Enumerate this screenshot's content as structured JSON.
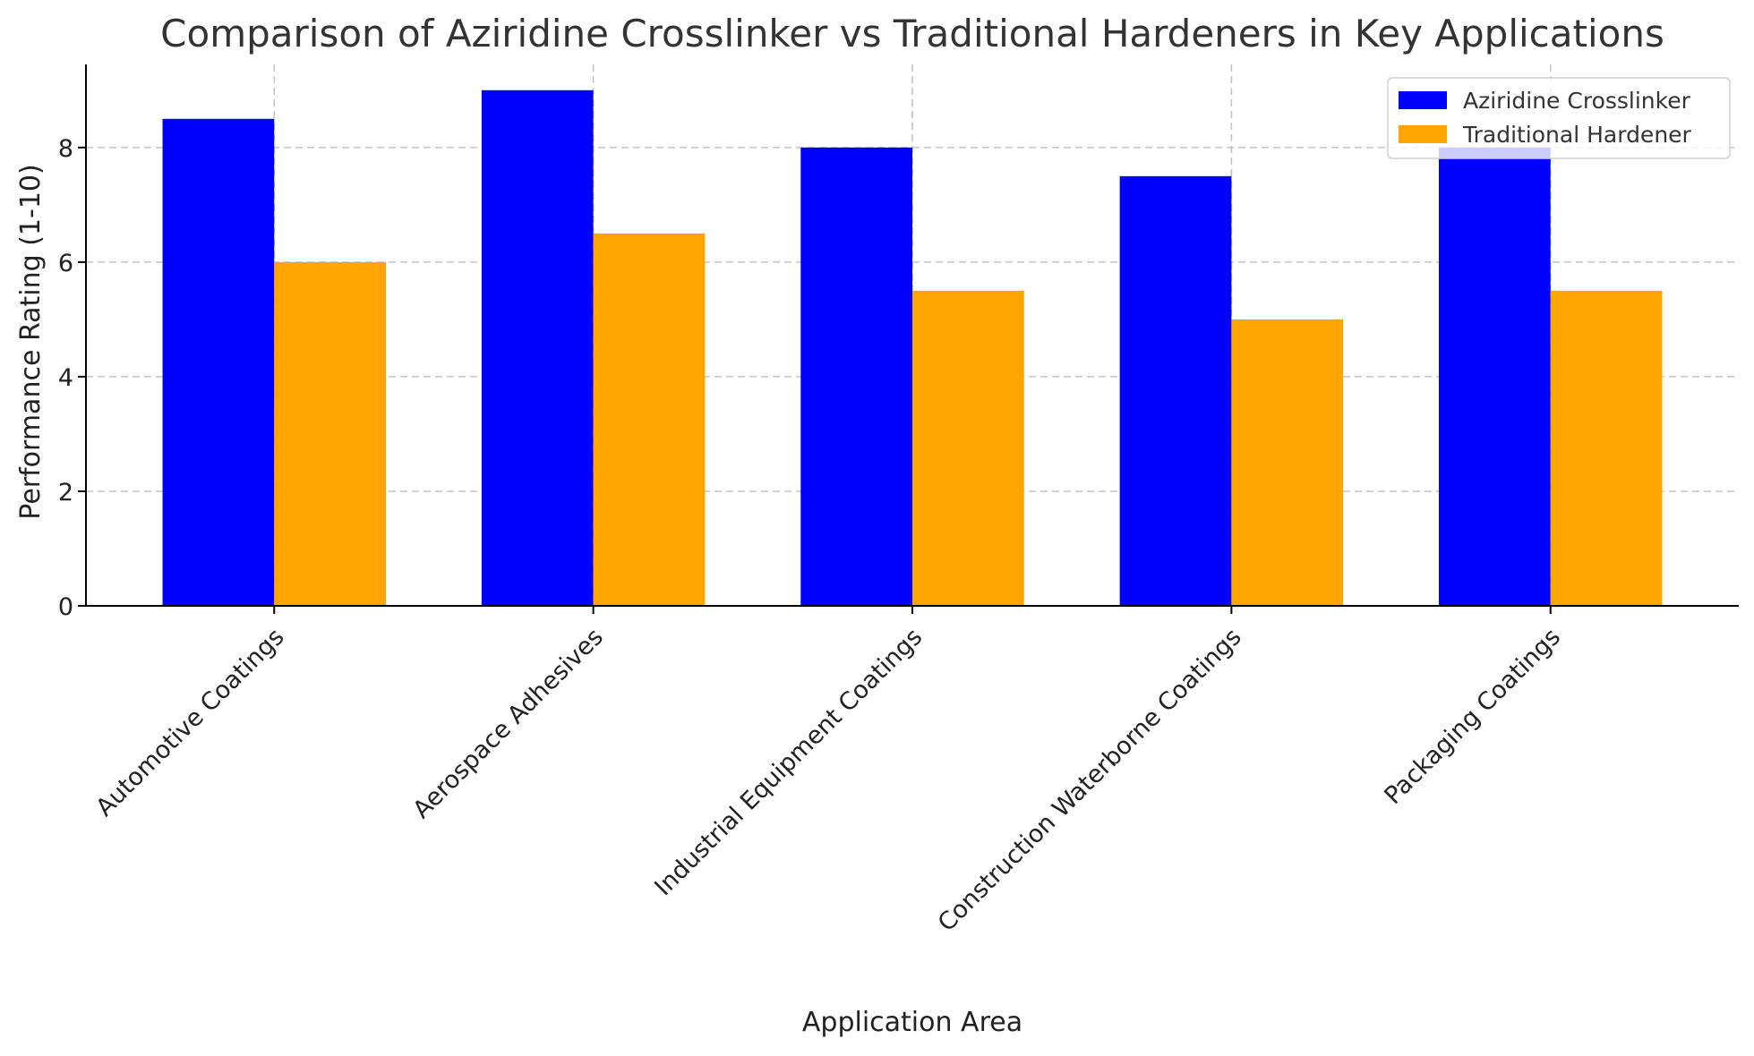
{
  "chart_data": {
    "type": "bar",
    "title": "Comparison of Aziridine Crosslinker vs Traditional Hardeners in Key Applications",
    "xlabel": "Application Area",
    "ylabel": "Performance Rating (1-10)",
    "categories": [
      "Automotive Coatings",
      "Aerospace Adhesives",
      "Industrial Equipment Coatings",
      "Construction Waterborne Coatings",
      "Packaging Coatings"
    ],
    "series": [
      {
        "name": "Aziridine Crosslinker",
        "color": "#0000ff",
        "values": [
          8.5,
          9,
          8,
          7.5,
          8
        ]
      },
      {
        "name": "Traditional Hardener",
        "color": "#ffa500",
        "values": [
          6,
          6.5,
          5.5,
          5,
          5.5
        ]
      }
    ],
    "ylim": [
      0,
      9.45
    ],
    "yticks": [
      "0",
      "2",
      "4",
      "6",
      "8"
    ],
    "grid": true,
    "legend_position": "top-right"
  }
}
